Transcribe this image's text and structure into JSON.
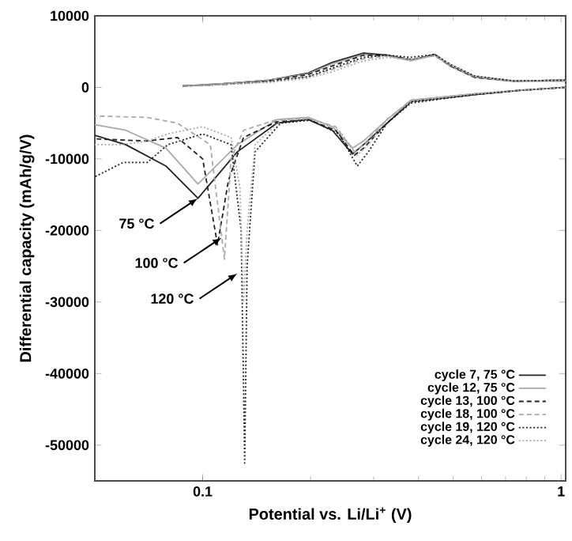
{
  "chart_data": {
    "type": "line",
    "xlabel": "Potential vs. Li/Li$^{+}$ (V)",
    "ylabel": "Differential capacity (mAh/g/V)",
    "log": "x",
    "xlim": [
      0.05,
      1.03
    ],
    "ylim": [
      -55000,
      10000
    ],
    "xticks": [
      0.1,
      1
    ],
    "yticks": [
      -50000,
      -40000,
      -30000,
      -20000,
      -10000,
      0,
      10000
    ],
    "legend": "bottom right",
    "annotations": [
      {
        "text": "75 °C",
        "x": 0.097,
        "y": -15500
      },
      {
        "text": "100 °C",
        "x": 0.113,
        "y": -21000
      },
      {
        "text": "120 °C",
        "x": 0.125,
        "y": -26000
      }
    ],
    "series": [
      {
        "name": "cycle 7, 75 °C",
        "color": "#222222",
        "line_style": "solid",
        "x": [
          0.088,
          0.113,
          0.153,
          0.197,
          0.23,
          0.281,
          0.327,
          0.381,
          0.444,
          0.492,
          0.573,
          0.738,
          1.03,
          1.03,
          0.776,
          0.573,
          0.381,
          0.327,
          0.281,
          0.262,
          0.23,
          0.197,
          0.161,
          0.125,
          0.097,
          0.079,
          0.061,
          0.05
        ],
        "values": [
          200,
          500,
          1000,
          2000,
          3500,
          4800,
          4500,
          3800,
          4600,
          3000,
          1500,
          900,
          1000,
          0,
          -400,
          -1000,
          -2000,
          -5000,
          -8000,
          -9300,
          -6000,
          -4500,
          -5000,
          -9000,
          -15500,
          -11000,
          -8000,
          -6700
        ]
      },
      {
        "name": "cycle 12, 75 °C",
        "color": "#aaaaaa",
        "line_style": "solid",
        "x": [
          0.088,
          0.113,
          0.153,
          0.197,
          0.23,
          0.281,
          0.327,
          0.381,
          0.444,
          0.492,
          0.573,
          0.738,
          1.03,
          1.03,
          0.776,
          0.573,
          0.381,
          0.327,
          0.281,
          0.262,
          0.23,
          0.197,
          0.161,
          0.125,
          0.097,
          0.079,
          0.061,
          0.05
        ],
        "values": [
          200,
          500,
          1000,
          1900,
          3300,
          4600,
          4400,
          3700,
          4500,
          2900,
          1400,
          800,
          900,
          0,
          -400,
          -900,
          -1800,
          -4500,
          -7500,
          -8500,
          -5500,
          -4200,
          -4500,
          -8000,
          -13500,
          -8500,
          -6000,
          -5200
        ]
      },
      {
        "name": "cycle 13, 100 °C",
        "color": "#222222",
        "line_style": "dashed",
        "x": [
          0.088,
          0.113,
          0.153,
          0.197,
          0.23,
          0.281,
          0.327,
          0.381,
          0.444,
          0.492,
          0.573,
          0.738,
          1.03,
          1.03,
          0.776,
          0.573,
          0.381,
          0.327,
          0.281,
          0.265,
          0.235,
          0.197,
          0.161,
          0.13,
          0.118,
          0.11,
          0.1,
          0.085,
          0.07,
          0.05
        ],
        "values": [
          200,
          400,
          900,
          1800,
          3000,
          4500,
          4500,
          3900,
          4500,
          3000,
          1400,
          900,
          1000,
          0,
          -400,
          -1000,
          -2000,
          -5000,
          -8500,
          -9500,
          -6000,
          -4500,
          -4800,
          -7000,
          -13000,
          -22000,
          -10000,
          -7000,
          -7500,
          -7200
        ]
      },
      {
        "name": "cycle 18, 100 °C",
        "color": "#aaaaaa",
        "line_style": "dashed",
        "x": [
          0.088,
          0.113,
          0.153,
          0.197,
          0.23,
          0.281,
          0.327,
          0.381,
          0.444,
          0.492,
          0.573,
          0.738,
          1.03,
          1.03,
          0.776,
          0.573,
          0.381,
          0.327,
          0.281,
          0.265,
          0.235,
          0.197,
          0.161,
          0.13,
          0.12,
          0.115,
          0.105,
          0.085,
          0.07,
          0.05
        ],
        "values": [
          200,
          400,
          800,
          1500,
          2500,
          4000,
          4400,
          3800,
          4500,
          3100,
          1500,
          900,
          1000,
          0,
          -400,
          -900,
          -1800,
          -4500,
          -8000,
          -9000,
          -5500,
          -4300,
          -4500,
          -6000,
          -10000,
          -24000,
          -8000,
          -5000,
          -4200,
          -4000
        ]
      },
      {
        "name": "cycle 19, 120 °C",
        "color": "#222222",
        "line_style": "dotted",
        "x": [
          0.088,
          0.113,
          0.153,
          0.197,
          0.23,
          0.281,
          0.327,
          0.381,
          0.444,
          0.492,
          0.573,
          0.738,
          1.03,
          1.03,
          0.776,
          0.573,
          0.381,
          0.327,
          0.29,
          0.27,
          0.24,
          0.2,
          0.165,
          0.14,
          0.133,
          0.131,
          0.128,
          0.12,
          0.1,
          0.08,
          0.07,
          0.06,
          0.05
        ],
        "values": [
          200,
          400,
          800,
          1500,
          2700,
          4200,
          4500,
          4200,
          4600,
          3200,
          1600,
          900,
          1000,
          0,
          -400,
          -1000,
          -2200,
          -5000,
          -9000,
          -11000,
          -6500,
          -4600,
          -5000,
          -9000,
          -25000,
          -52500,
          -20000,
          -8000,
          -6500,
          -8000,
          -10500,
          -10500,
          -12500
        ]
      },
      {
        "name": "cycle 24, 120 °C",
        "color": "#aaaaaa",
        "line_style": "dotted",
        "x": [
          0.088,
          0.113,
          0.153,
          0.197,
          0.23,
          0.281,
          0.327,
          0.381,
          0.444,
          0.492,
          0.573,
          0.738,
          1.03,
          1.03,
          0.776,
          0.573,
          0.381,
          0.327,
          0.29,
          0.27,
          0.24,
          0.2,
          0.165,
          0.14,
          0.133,
          0.13,
          0.127,
          0.12,
          0.1,
          0.08,
          0.07,
          0.06,
          0.05
        ],
        "values": [
          200,
          400,
          700,
          1300,
          2200,
          3700,
          4200,
          3900,
          4400,
          3200,
          1600,
          900,
          1000,
          0,
          -400,
          -900,
          -2000,
          -4500,
          -8000,
          -9500,
          -6000,
          -4400,
          -4600,
          -8000,
          -20000,
          -30000,
          -14000,
          -7000,
          -5500,
          -6500,
          -7500,
          -8000,
          -8000
        ]
      }
    ]
  }
}
